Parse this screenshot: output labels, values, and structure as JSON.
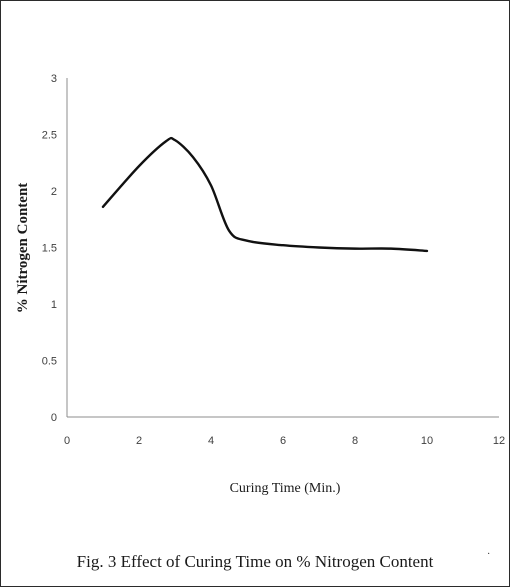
{
  "figure": {
    "caption": "Fig. 3 Effect of Curing Time on % Nitrogen Content",
    "stray_mark": "·"
  },
  "chart_data": {
    "type": "line",
    "xlabel": "Curing Time (Min.)",
    "ylabel": "% Nitrogen Content",
    "xlim": [
      0,
      12
    ],
    "ylim": [
      0,
      3
    ],
    "xticks": [
      0,
      2,
      4,
      6,
      8,
      10,
      12
    ],
    "yticks": [
      0,
      0.5,
      1,
      1.5,
      2,
      2.5,
      3
    ],
    "grid": false,
    "series": [
      {
        "color": "#111111",
        "x": [
          1,
          2,
          2.75,
          3,
          3.5,
          4,
          4.5,
          5,
          6,
          7,
          8,
          9,
          10
        ],
        "y": [
          1.86,
          2.22,
          2.44,
          2.45,
          2.3,
          2.05,
          1.65,
          1.56,
          1.52,
          1.5,
          1.49,
          1.49,
          1.47
        ]
      }
    ]
  }
}
